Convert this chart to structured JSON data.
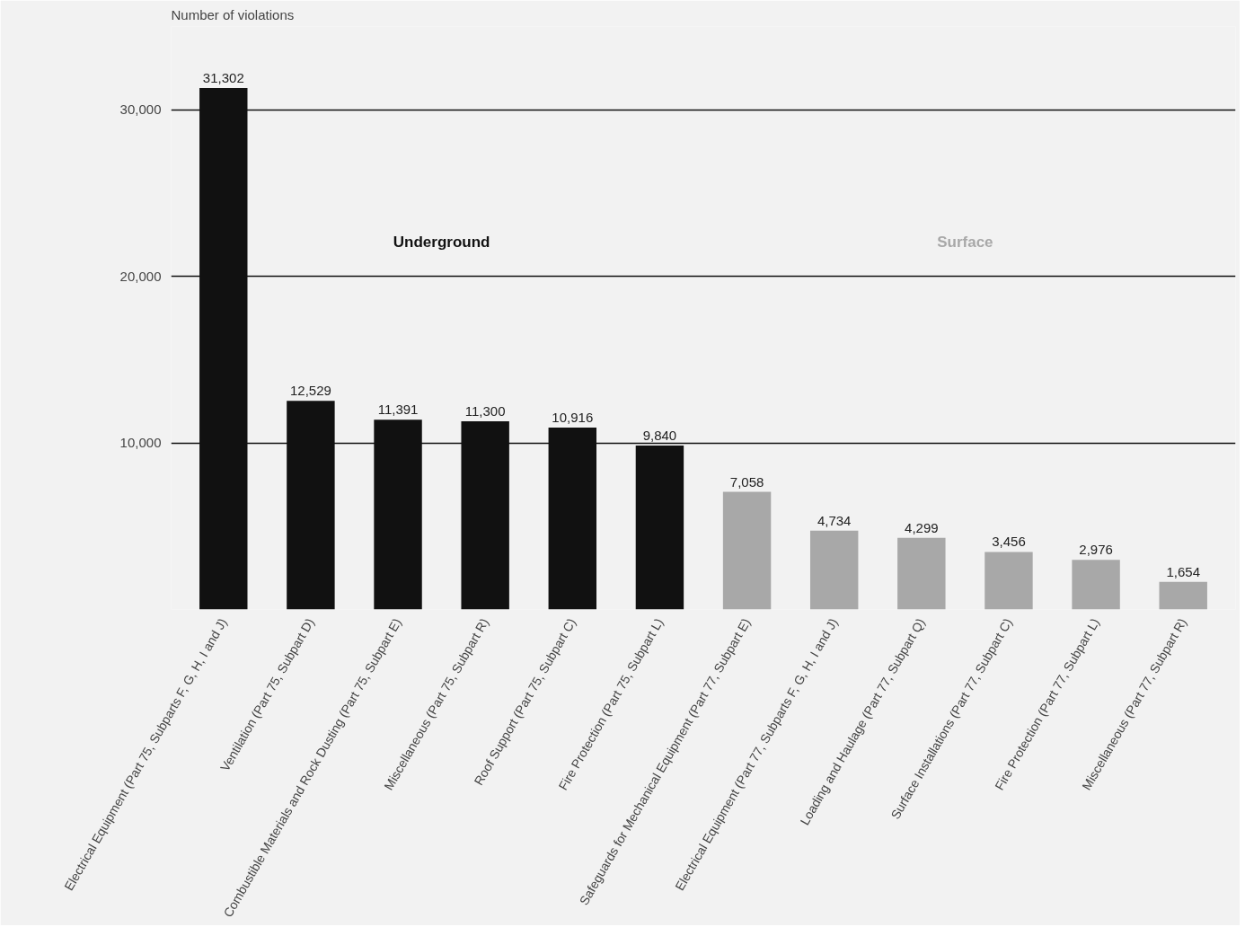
{
  "chart_data": {
    "type": "bar",
    "ylabel": "Number of violations",
    "categories": [
      "Electrical Equipment (Part 75, Subparts F, G, H, I and J)",
      "Ventilation (Part 75, Subpart D)",
      "Combustible Materials and Rock Dusting (Part 75, Subpart E)",
      "Miscellaneous (Part 75, Subpart R)",
      "Roof Support (Part 75, Subpart C)",
      "Fire Protection (Part 75, Subpart L)",
      "Safeguards for Mechanical Equipment (Part 77, Subpart E)",
      "Electrical Equipment (Part 77, Subparts F, G, H, I and J)",
      "Loading and Haulage (Part 77, Subpart Q)",
      "Surface Installations (Part 77, Subpart C)",
      "Fire Protection (Part 77, Subpart L)",
      "Miscellaneous (Part 77, Subpart R)"
    ],
    "series": [
      {
        "name": "Underground",
        "color": "#111111",
        "values": [
          31302,
          12529,
          11391,
          11300,
          10916,
          9840,
          null,
          null,
          null,
          null,
          null,
          null
        ],
        "value_labels": [
          "31,302",
          "12,529",
          "11,391",
          "11,300",
          "10,916",
          "9,840",
          null,
          null,
          null,
          null,
          null,
          null
        ]
      },
      {
        "name": "Surface",
        "color": "#a8a8a8",
        "values": [
          null,
          null,
          null,
          null,
          null,
          null,
          7058,
          4734,
          4299,
          3456,
          2976,
          1654
        ],
        "value_labels": [
          null,
          null,
          null,
          null,
          null,
          null,
          "7,058",
          "4,734",
          "4,299",
          "3,456",
          "2,976",
          "1,654"
        ]
      }
    ],
    "ylim": [
      0,
      35000
    ],
    "yticks": [
      {
        "value": 10000,
        "label": "10,000"
      },
      {
        "value": 20000,
        "label": "20,000"
      },
      {
        "value": 30000,
        "label": "30,000"
      }
    ],
    "grid": "y",
    "legend": false
  }
}
